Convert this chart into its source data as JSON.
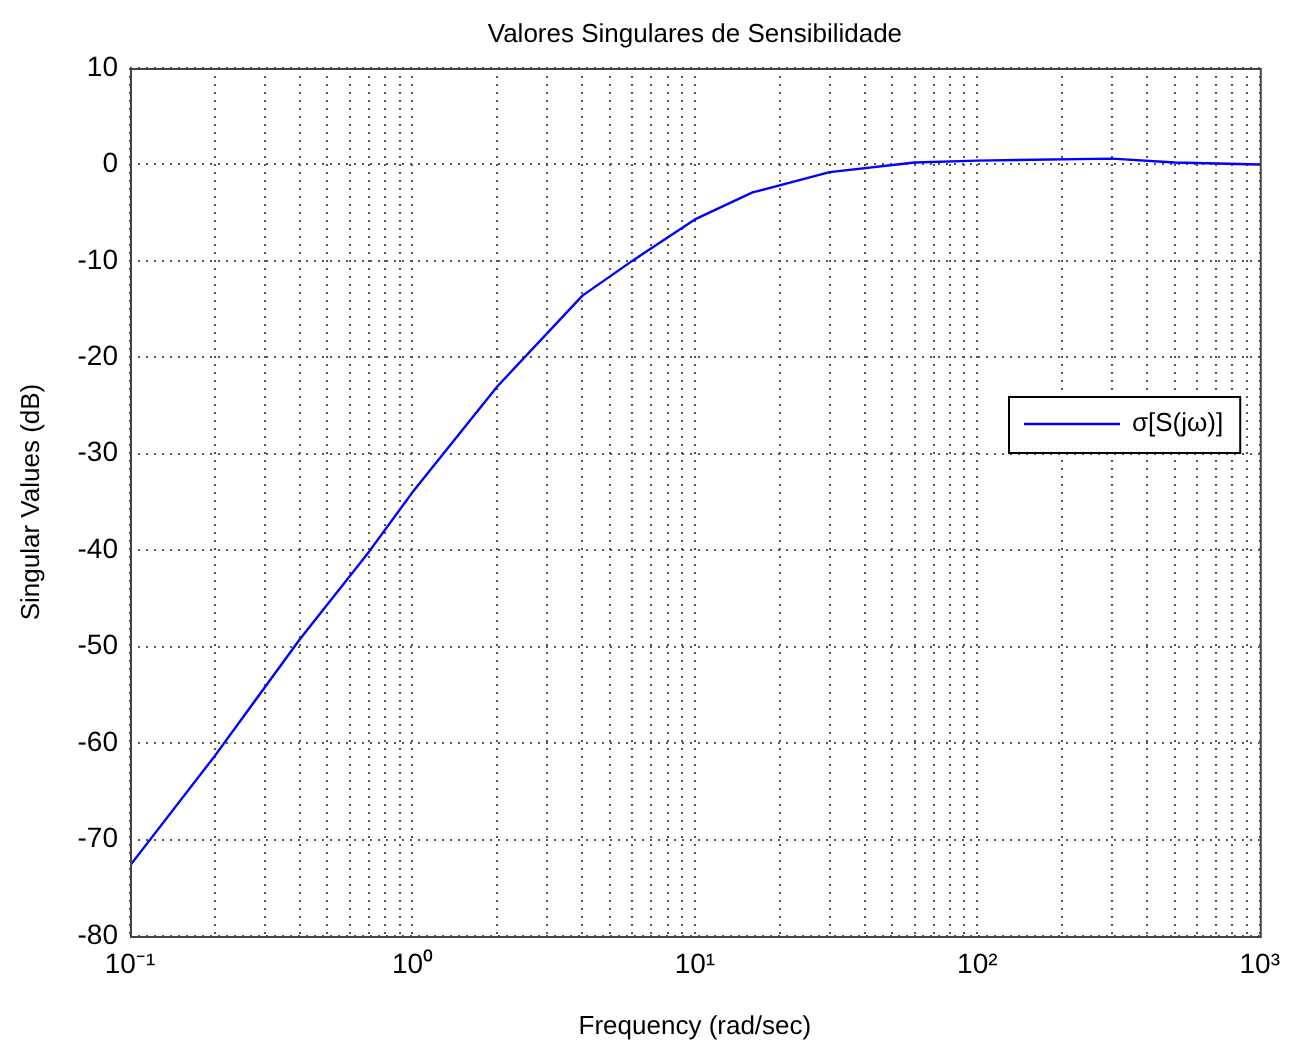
{
  "chart_data": {
    "type": "line",
    "title": "Valores Singulares de Sensibilidade",
    "xlabel": "Frequency (rad/sec)",
    "ylabel": "Singular Values (dB)",
    "log": "x",
    "grid": true,
    "legend": "right",
    "line_style": "solid",
    "xlim": [
      0.1,
      1000
    ],
    "xticks": [
      {
        "value": 0.1,
        "label": "10⁻¹"
      },
      {
        "value": 0.2,
        "label": null
      },
      {
        "value": 0.3,
        "label": null
      },
      {
        "value": 0.4,
        "label": null
      },
      {
        "value": 0.5,
        "label": null
      },
      {
        "value": 0.6,
        "label": null
      },
      {
        "value": 0.7,
        "label": null
      },
      {
        "value": 0.8,
        "label": null
      },
      {
        "value": 0.9,
        "label": null
      },
      {
        "value": 1,
        "label": "10⁰"
      },
      {
        "value": 2,
        "label": null
      },
      {
        "value": 3,
        "label": null
      },
      {
        "value": 4,
        "label": null
      },
      {
        "value": 5,
        "label": null
      },
      {
        "value": 6,
        "label": null
      },
      {
        "value": 7,
        "label": null
      },
      {
        "value": 8,
        "label": null
      },
      {
        "value": 9,
        "label": null
      },
      {
        "value": 10,
        "label": "10¹"
      },
      {
        "value": 20,
        "label": null
      },
      {
        "value": 30,
        "label": null
      },
      {
        "value": 40,
        "label": null
      },
      {
        "value": 50,
        "label": null
      },
      {
        "value": 60,
        "label": null
      },
      {
        "value": 70,
        "label": null
      },
      {
        "value": 80,
        "label": null
      },
      {
        "value": 90,
        "label": null
      },
      {
        "value": 100,
        "label": "10²"
      },
      {
        "value": 200,
        "label": null
      },
      {
        "value": 300,
        "label": null
      },
      {
        "value": 400,
        "label": null
      },
      {
        "value": 500,
        "label": null
      },
      {
        "value": 600,
        "label": null
      },
      {
        "value": 700,
        "label": null
      },
      {
        "value": 800,
        "label": null
      },
      {
        "value": 900,
        "label": null
      },
      {
        "value": 1000,
        "label": "10³"
      }
    ],
    "ylim": [
      -80,
      10
    ],
    "yticks": [
      -80,
      -70,
      -60,
      -50,
      -40,
      -30,
      -20,
      -10,
      0,
      10
    ],
    "x": [
      0.1,
      0.2,
      0.4,
      0.7,
      1,
      2,
      4,
      6,
      10,
      16,
      30,
      60,
      100,
      300,
      500,
      1000
    ],
    "series": [
      {
        "name": "σ[S(jω)]",
        "color": "#0000ff",
        "values": [
          -72.7,
          -61.3,
          -49.2,
          -40.2,
          -34,
          -23,
          -13.6,
          -10,
          -5.7,
          -2.9,
          -0.8,
          0.2,
          0.4,
          0.6,
          0.2,
          0
        ]
      }
    ]
  }
}
